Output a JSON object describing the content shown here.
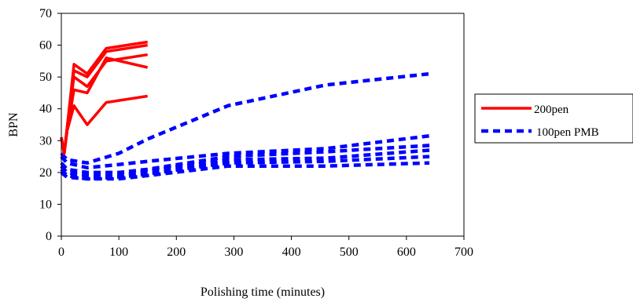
{
  "chart_data": {
    "type": "line",
    "xlabel": "Polishing time (minutes)",
    "ylabel": "BPN",
    "xlim": [
      0,
      700
    ],
    "ylim": [
      0,
      70
    ],
    "xticks": [
      "0",
      "100",
      "200",
      "300",
      "400",
      "500",
      "600",
      "700"
    ],
    "yticks": [
      "0",
      "10",
      "20",
      "30",
      "40",
      "50",
      "60",
      "70"
    ],
    "grid": false,
    "legend_position": "right",
    "legend": [
      {
        "label": "200pen",
        "color": "#ff0000",
        "style": "solid"
      },
      {
        "label": "100pen PMB",
        "color": "#0000ff",
        "style": "dashed"
      }
    ],
    "series": [
      {
        "group": "200pen",
        "color": "#ff0000",
        "style": "solid",
        "x": [
          0,
          5,
          10,
          22,
          45,
          78,
          150
        ],
        "y": [
          31,
          26,
          33,
          41,
          35,
          42,
          44
        ]
      },
      {
        "group": "200pen",
        "color": "#ff0000",
        "style": "solid",
        "x": [
          0,
          5,
          10,
          22,
          45,
          78,
          150
        ],
        "y": [
          31,
          26,
          33,
          46,
          45,
          56,
          53
        ]
      },
      {
        "group": "200pen",
        "color": "#ff0000",
        "style": "solid",
        "x": [
          0,
          5,
          10,
          22,
          45,
          78,
          150
        ],
        "y": [
          31,
          26,
          34,
          50,
          47,
          55,
          57
        ]
      },
      {
        "group": "200pen",
        "color": "#ff0000",
        "style": "solid",
        "x": [
          0,
          5,
          10,
          22,
          45,
          78,
          150
        ],
        "y": [
          31,
          26,
          34,
          52,
          50,
          58,
          60
        ]
      },
      {
        "group": "200pen",
        "color": "#ff0000",
        "style": "solid",
        "x": [
          0,
          5,
          10,
          22,
          45,
          78,
          150
        ],
        "y": [
          31,
          26,
          34,
          54,
          51,
          59,
          61
        ]
      },
      {
        "group": "100pen PMB",
        "color": "#0000ff",
        "style": "dashed",
        "x": [
          0,
          10,
          45,
          100,
          150,
          290,
          460,
          640
        ],
        "y": [
          26,
          24,
          23,
          26,
          30.5,
          41,
          47.5,
          51
        ]
      },
      {
        "group": "100pen PMB",
        "color": "#0000ff",
        "style": "dashed",
        "x": [
          0,
          10,
          45,
          100,
          150,
          290,
          460,
          640
        ],
        "y": [
          25,
          23,
          21.5,
          22.5,
          23.5,
          26,
          27.5,
          31.5
        ]
      },
      {
        "group": "100pen PMB",
        "color": "#0000ff",
        "style": "dashed",
        "x": [
          0,
          10,
          45,
          100,
          150,
          290,
          460,
          640
        ],
        "y": [
          23,
          21,
          20,
          20,
          21,
          25,
          26.5,
          28.5
        ]
      },
      {
        "group": "100pen PMB",
        "color": "#0000ff",
        "style": "dashed",
        "x": [
          0,
          10,
          45,
          100,
          150,
          290,
          460,
          640
        ],
        "y": [
          22,
          20,
          19,
          19,
          20.5,
          24,
          24.5,
          27
        ]
      },
      {
        "group": "100pen PMB",
        "color": "#0000ff",
        "style": "dashed",
        "x": [
          0,
          10,
          45,
          100,
          150,
          290,
          460,
          640
        ],
        "y": [
          21,
          19,
          18,
          18.5,
          19.5,
          23,
          23.5,
          25
        ]
      },
      {
        "group": "100pen PMB",
        "color": "#0000ff",
        "style": "dashed",
        "x": [
          0,
          10,
          45,
          100,
          150,
          290,
          460,
          640
        ],
        "y": [
          20,
          18.5,
          18,
          18,
          19,
          22,
          22,
          23
        ]
      }
    ]
  }
}
